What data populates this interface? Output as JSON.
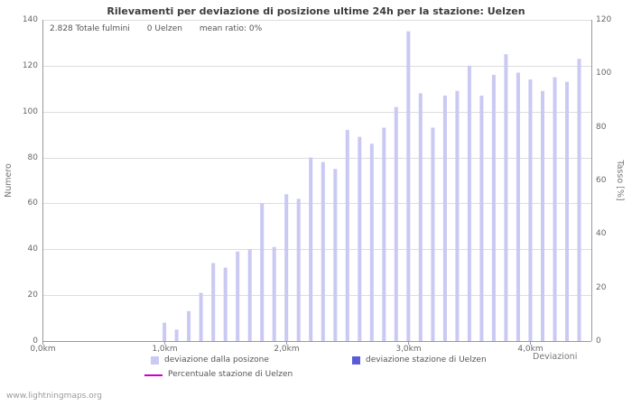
{
  "page": {
    "footer": "www.lightningmaps.org"
  },
  "chart_data": {
    "type": "bar",
    "title": "Rilevamenti per deviazione di posizione ultime 24h per la stazione: Uelzen",
    "annotations": [
      "2.828 Totale fulmini",
      "0 Uelzen",
      "mean ratio: 0%"
    ],
    "xlabel": "Deviazioni",
    "ylabel_left": "Numero",
    "ylabel_right": "Tasso [%]",
    "ylim_left": [
      0,
      140
    ],
    "ylim_right": [
      0,
      120
    ],
    "y_ticks_left": [
      0,
      20,
      40,
      60,
      80,
      100,
      120,
      140
    ],
    "y_ticks_right": [
      0,
      20,
      40,
      60,
      80,
      100,
      120
    ],
    "x_axis_max_km": 4.5,
    "x_ticks": [
      {
        "km": 0,
        "label": "0,0km"
      },
      {
        "km": 1,
        "label": "1,0km"
      },
      {
        "km": 2,
        "label": "2,0km"
      },
      {
        "km": 3,
        "label": "3,0km"
      },
      {
        "km": 4,
        "label": "4,0km"
      }
    ],
    "grid": true,
    "legend_position": "bottom",
    "x": [
      0,
      0.1,
      0.2,
      0.3,
      0.4,
      0.5,
      0.6,
      0.7,
      0.8,
      0.9,
      1,
      1.1,
      1.2,
      1.3,
      1.4,
      1.5,
      1.6,
      1.7,
      1.8,
      1.9,
      2,
      2.1,
      2.2,
      2.3,
      2.4,
      2.5,
      2.6,
      2.7,
      2.8,
      2.9,
      3,
      3.1,
      3.2,
      3.3,
      3.4,
      3.5,
      3.6,
      3.7,
      3.8,
      3.9,
      4,
      4.1,
      4.2,
      4.3,
      4.4
    ],
    "series": [
      {
        "name": "deviazione dalla posizone",
        "type": "bar",
        "color": "#c9c9f3",
        "values": [
          0,
          0,
          0,
          0,
          0,
          0,
          0,
          0,
          0,
          0,
          8,
          5,
          13,
          21,
          34,
          32,
          39,
          40,
          60,
          41,
          64,
          62,
          80,
          78,
          75,
          92,
          89,
          86,
          93,
          102,
          135,
          108,
          93,
          107,
          109,
          120,
          107,
          116,
          125,
          117,
          114,
          109,
          115,
          113,
          123
        ]
      },
      {
        "name": "deviazione stazione di Uelzen",
        "type": "bar",
        "color": "#5b5bd6",
        "values": [
          0,
          0,
          0,
          0,
          0,
          0,
          0,
          0,
          0,
          0,
          0,
          0,
          0,
          0,
          0,
          0,
          0,
          0,
          0,
          0,
          0,
          0,
          0,
          0,
          0,
          0,
          0,
          0,
          0,
          0,
          0,
          0,
          0,
          0,
          0,
          0,
          0,
          0,
          0,
          0,
          0,
          0,
          0,
          0,
          0
        ]
      },
      {
        "name": "Percentuale stazione di Uelzen",
        "type": "line",
        "color": "#cc00cc",
        "values": []
      }
    ]
  }
}
